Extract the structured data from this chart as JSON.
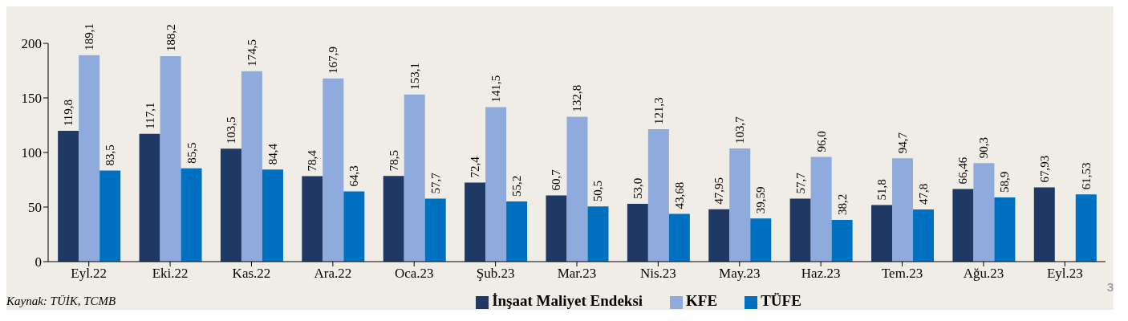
{
  "chart_data": {
    "type": "bar",
    "categories": [
      "Eyl.22",
      "Eki.22",
      "Kas.22",
      "Ara.22",
      "Oca.23",
      "Şub.23",
      "Mar.23",
      "Nis.23",
      "May.23",
      "Haz.23",
      "Tem.23",
      "Ağu.23",
      "Eyl.23"
    ],
    "series": [
      {
        "name": "İnşaat Maliyet Endeksi",
        "color": "#203864",
        "values": [
          119.8,
          117.1,
          103.5,
          78.4,
          78.5,
          72.4,
          60.7,
          53.0,
          47.95,
          57.7,
          51.8,
          66.46,
          67.93
        ],
        "value_labels": [
          "119,8",
          "117,1",
          "103,5",
          "78,4",
          "78,5",
          "72,4",
          "60,7",
          "53,0",
          "47,95",
          "57,7",
          "51,8",
          "66,46",
          "67,93"
        ]
      },
      {
        "name": "KFE",
        "color": "#8faadc",
        "values": [
          189.1,
          188.2,
          174.5,
          167.9,
          153.1,
          141.5,
          132.8,
          121.3,
          103.7,
          96.0,
          94.7,
          90.3,
          null
        ],
        "value_labels": [
          "189,1",
          "188,2",
          "174,5",
          "167,9",
          "153,1",
          "141,5",
          "132,8",
          "121,3",
          "103,7",
          "96,0",
          "94,7",
          "90,3",
          null
        ]
      },
      {
        "name": "TÜFE",
        "color": "#0070c0",
        "values": [
          83.5,
          85.5,
          84.4,
          64.3,
          57.7,
          55.2,
          50.5,
          43.68,
          39.59,
          38.2,
          47.8,
          58.9,
          61.53
        ],
        "value_labels": [
          "83,5",
          "85,5",
          "84,4",
          "64,3",
          "57,7",
          "55,2",
          "50,5",
          "43,68",
          "39,59",
          "38,2",
          "47,8",
          "58,9",
          "61,53"
        ]
      }
    ],
    "ylim": [
      0,
      200
    ],
    "yticks": [
      0,
      50,
      100,
      150,
      200
    ],
    "legend": "bottom",
    "annotations": [
      "Kaynak: TÜİK, TCMB",
      "3"
    ]
  }
}
